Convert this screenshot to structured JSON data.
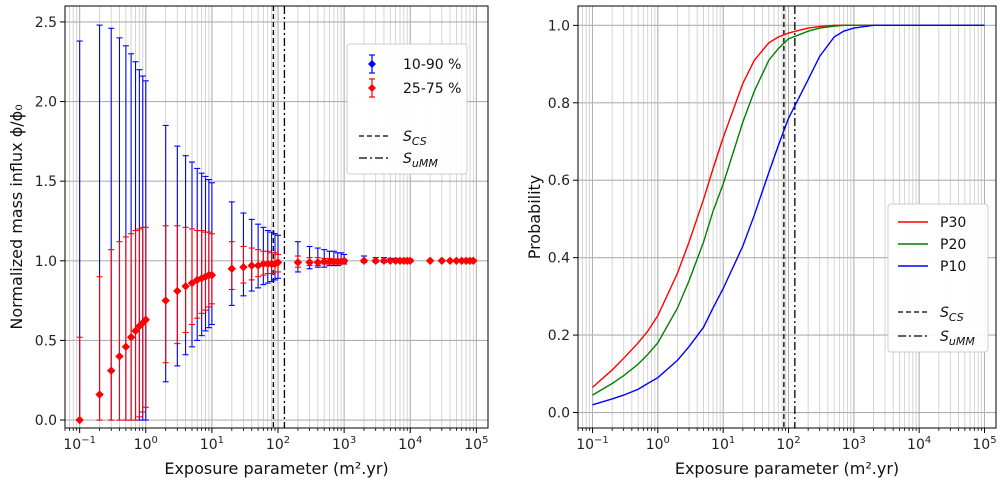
{
  "chart_data": [
    {
      "type": "scatter",
      "xlabel": "Exposure parameter (m².yr)",
      "ylabel": "Normalized mass influx ϕ/ϕ₀",
      "xscale": "log",
      "xlim": [
        0.06,
        150000
      ],
      "ylim": [
        -0.05,
        2.6
      ],
      "yticks": [
        0.0,
        0.5,
        1.0,
        1.5,
        2.0,
        2.5
      ],
      "ytick_labels": [
        "0.0",
        "0.5",
        "1.0",
        "1.5",
        "2.0",
        "2.5"
      ],
      "xtick_labels": [
        "10⁻¹",
        "10⁰",
        "10¹",
        "10²",
        "10³",
        "10⁴",
        "10⁵"
      ],
      "grid": true,
      "legend_position": "top-right",
      "x": [
        0.1,
        0.2,
        0.3,
        0.4,
        0.5,
        0.6,
        0.7,
        0.8,
        0.9,
        1,
        2,
        3,
        4,
        5,
        6,
        7,
        8,
        9,
        10,
        20,
        30,
        40,
        50,
        60,
        70,
        80,
        90,
        100,
        200,
        300,
        400,
        500,
        600,
        700,
        800,
        900,
        1000,
        2000,
        3000,
        4000,
        5000,
        6000,
        7000,
        8000,
        9000,
        10000,
        20000,
        30000,
        40000,
        50000,
        60000,
        70000,
        80000,
        90000
      ],
      "series": [
        {
          "name": "10-90 %",
          "color": "#0000ff",
          "median": [
            0.0,
            0.16,
            0.31,
            0.4,
            0.46,
            0.52,
            0.56,
            0.59,
            0.61,
            0.63,
            0.75,
            0.81,
            0.84,
            0.86,
            0.88,
            0.89,
            0.9,
            0.91,
            0.91,
            0.95,
            0.96,
            0.97,
            0.97,
            0.98,
            0.98,
            0.98,
            0.98,
            0.99,
            0.99,
            0.99,
            0.99,
            0.995,
            0.995,
            0.995,
            0.995,
            0.995,
            1.0,
            1.0,
            1.0,
            1.0,
            1.0,
            1.0,
            1.0,
            1.0,
            1.0,
            1.0,
            1.0,
            1.0,
            1.0,
            1.0,
            1.0,
            1.0,
            1.0,
            1.0
          ],
          "low": [
            0.0,
            0.0,
            0.0,
            0.0,
            0.0,
            0.0,
            0.0,
            0.0,
            0.0,
            0.0,
            0.24,
            0.34,
            0.41,
            0.46,
            0.5,
            0.53,
            0.56,
            0.58,
            0.6,
            0.72,
            0.78,
            0.81,
            0.83,
            0.85,
            0.86,
            0.87,
            0.88,
            0.89,
            0.93,
            0.95,
            0.96,
            0.96,
            0.97,
            0.97,
            0.97,
            0.98,
            0.98,
            0.99,
            0.99,
            0.99,
            0.995,
            0.995,
            0.995,
            0.995,
            0.995,
            0.995,
            1.0,
            1.0,
            1.0,
            1.0,
            1.0,
            1.0,
            1.0,
            1.0
          ],
          "high": [
            2.38,
            2.48,
            2.46,
            2.4,
            2.35,
            2.3,
            2.25,
            2.2,
            2.16,
            2.13,
            1.85,
            1.72,
            1.66,
            1.62,
            1.58,
            1.55,
            1.53,
            1.51,
            1.49,
            1.37,
            1.3,
            1.26,
            1.23,
            1.21,
            1.19,
            1.18,
            1.17,
            1.16,
            1.12,
            1.09,
            1.08,
            1.07,
            1.06,
            1.06,
            1.05,
            1.05,
            1.04,
            1.03,
            1.02,
            1.02,
            1.015,
            1.015,
            1.01,
            1.01,
            1.01,
            1.01,
            1.005,
            1.005,
            1.005,
            1.005,
            1.005,
            1.005,
            1.005,
            1.005
          ]
        },
        {
          "name": "25-75 %",
          "color": "#ff0000",
          "median": [
            0.0,
            0.16,
            0.31,
            0.4,
            0.46,
            0.52,
            0.56,
            0.59,
            0.61,
            0.63,
            0.75,
            0.81,
            0.84,
            0.86,
            0.88,
            0.89,
            0.9,
            0.91,
            0.91,
            0.95,
            0.96,
            0.97,
            0.97,
            0.98,
            0.98,
            0.98,
            0.98,
            0.99,
            0.99,
            0.99,
            0.99,
            0.995,
            0.995,
            0.995,
            0.995,
            0.995,
            1.0,
            1.0,
            1.0,
            1.0,
            1.0,
            1.0,
            1.0,
            1.0,
            1.0,
            1.0,
            1.0,
            1.0,
            1.0,
            1.0,
            1.0,
            1.0,
            1.0,
            1.0
          ],
          "low": [
            0.0,
            0.0,
            0.0,
            0.0,
            0.0,
            0.0,
            0.0,
            0.02,
            0.05,
            0.08,
            0.36,
            0.48,
            0.55,
            0.6,
            0.64,
            0.67,
            0.69,
            0.71,
            0.73,
            0.82,
            0.86,
            0.88,
            0.9,
            0.91,
            0.92,
            0.92,
            0.93,
            0.93,
            0.96,
            0.97,
            0.97,
            0.98,
            0.98,
            0.98,
            0.985,
            0.985,
            0.99,
            0.99,
            0.995,
            0.995,
            0.995,
            0.995,
            0.995,
            1.0,
            1.0,
            1.0,
            1.0,
            1.0,
            1.0,
            1.0,
            1.0,
            1.0,
            1.0,
            1.0
          ],
          "high": [
            0.52,
            0.9,
            1.07,
            1.12,
            1.15,
            1.17,
            1.19,
            1.2,
            1.21,
            1.21,
            1.22,
            1.22,
            1.21,
            1.2,
            1.19,
            1.19,
            1.18,
            1.18,
            1.17,
            1.12,
            1.09,
            1.08,
            1.07,
            1.06,
            1.06,
            1.05,
            1.05,
            1.04,
            1.03,
            1.02,
            1.02,
            1.015,
            1.015,
            1.01,
            1.01,
            1.01,
            1.01,
            1.005,
            1.005,
            1.005,
            1.005,
            1.005,
            1.005,
            1.0,
            1.0,
            1.0,
            1.0,
            1.0,
            1.0,
            1.0,
            1.0,
            1.0,
            1.0,
            1.0
          ]
        }
      ],
      "vlines": [
        {
          "name": "S_CS",
          "label_main": "S",
          "label_sub": "CS",
          "x": 85,
          "style": "dashed"
        },
        {
          "name": "S_uMM",
          "label_main": "S",
          "label_sub": "uMM",
          "x": 125,
          "style": "dashdot"
        }
      ]
    },
    {
      "type": "line",
      "xlabel": "Exposure parameter (m².yr)",
      "ylabel": "Probability",
      "xscale": "log",
      "xlim": [
        0.06,
        150000
      ],
      "ylim": [
        -0.04,
        1.05
      ],
      "yticks": [
        0.0,
        0.2,
        0.4,
        0.6,
        0.8,
        1.0
      ],
      "ytick_labels": [
        "0.0",
        "0.2",
        "0.4",
        "0.6",
        "0.8",
        "1.0"
      ],
      "xtick_labels": [
        "10⁻¹",
        "10⁰",
        "10¹",
        "10²",
        "10³",
        "10⁴",
        "10⁵"
      ],
      "grid": true,
      "legend_position": "center-right",
      "x": [
        0.1,
        0.2,
        0.3,
        0.5,
        0.7,
        1,
        2,
        3,
        5,
        7,
        10,
        20,
        30,
        50,
        70,
        100,
        200,
        300,
        500,
        700,
        1000,
        2000,
        3000,
        5000,
        10000,
        20000,
        50000,
        100000
      ],
      "series": [
        {
          "name": "P30",
          "color": "#ff0000",
          "values": [
            0.065,
            0.11,
            0.14,
            0.18,
            0.21,
            0.25,
            0.36,
            0.44,
            0.55,
            0.63,
            0.71,
            0.85,
            0.91,
            0.955,
            0.97,
            0.98,
            0.993,
            0.997,
            1.0,
            1.0,
            1.0,
            1.0,
            1.0,
            1.0,
            1.0,
            1.0,
            1.0,
            1.0
          ]
        },
        {
          "name": "P20",
          "color": "#008000",
          "values": [
            0.045,
            0.075,
            0.095,
            0.125,
            0.15,
            0.18,
            0.27,
            0.34,
            0.44,
            0.52,
            0.59,
            0.75,
            0.83,
            0.91,
            0.94,
            0.965,
            0.985,
            0.993,
            0.998,
            1.0,
            1.0,
            1.0,
            1.0,
            1.0,
            1.0,
            1.0,
            1.0,
            1.0
          ]
        },
        {
          "name": "P10",
          "color": "#0000ff",
          "values": [
            0.02,
            0.035,
            0.045,
            0.06,
            0.075,
            0.09,
            0.135,
            0.17,
            0.22,
            0.27,
            0.32,
            0.43,
            0.51,
            0.62,
            0.69,
            0.76,
            0.86,
            0.92,
            0.97,
            0.985,
            0.993,
            1.0,
            1.0,
            1.0,
            1.0,
            1.0,
            1.0,
            1.0
          ]
        }
      ],
      "vlines": [
        {
          "name": "S_CS",
          "label_main": "S",
          "label_sub": "CS",
          "x": 85,
          "style": "dashed"
        },
        {
          "name": "S_uMM",
          "label_main": "S",
          "label_sub": "uMM",
          "x": 125,
          "style": "dashdot"
        }
      ]
    }
  ]
}
